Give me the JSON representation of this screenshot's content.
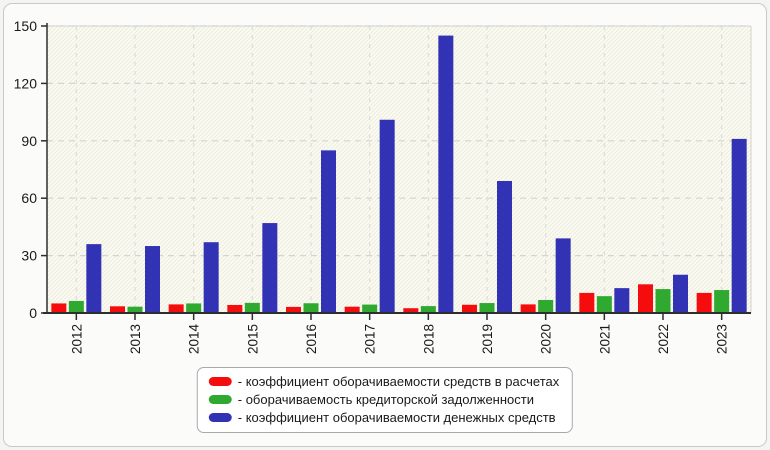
{
  "style": {
    "page_bg": "#f4f4f4",
    "panel_bg": "#fbfbfa",
    "panel_border": "#c9c9c9",
    "plot_bg": "#fcfcf2",
    "hatch_line": "#ebebdf",
    "grid_color_h": "#d4d4d4",
    "grid_color_v": "#dcdcdc",
    "spine_light": "#d2d2cc",
    "axis_color": "#2e2e2e",
    "text_color": "#1a1a1a"
  },
  "chart_data": {
    "type": "bar",
    "title": "",
    "xlabel": "",
    "ylabel": "",
    "categories": [
      "2012",
      "2013",
      "2014",
      "2015",
      "2016",
      "2017",
      "2018",
      "2019",
      "2020",
      "2021",
      "2022",
      "2023"
    ],
    "series": [
      {
        "name": "коэффициент оборачиваемости средств в расчетах",
        "color": "#f50d0d",
        "values": [
          5,
          3.5,
          4.5,
          4.2,
          3.2,
          3.3,
          2.5,
          4.3,
          4.5,
          10.5,
          15,
          10.5
        ]
      },
      {
        "name": "оборачиваемость кредиторской задолженности",
        "color": "#30a930",
        "values": [
          6.3,
          3.3,
          5,
          5.3,
          5.1,
          4.4,
          3.6,
          5.2,
          6.8,
          8.8,
          12.5,
          12
        ]
      },
      {
        "name": "коэффициент оборачиваемости денежных средств",
        "color": "#3232b4",
        "values": [
          36,
          35,
          37,
          47,
          85,
          101,
          145,
          69,
          39,
          13,
          20,
          91
        ]
      }
    ],
    "ylim": [
      0,
      150
    ],
    "yticks": [
      0,
      30,
      60,
      90,
      120,
      150
    ],
    "grid": true,
    "x_tick_label_rotation": 90,
    "legend_position": "bottom-center"
  },
  "legend": {
    "items": [
      {
        "label": "- коэффициент оборачиваемости средств в расчетах",
        "color": "#f50d0d"
      },
      {
        "label": "- оборачиваемость кредиторской задолженности",
        "color": "#30a930"
      },
      {
        "label": "- коэффициент оборачиваемости денежных средств",
        "color": "#3232b4"
      }
    ]
  }
}
